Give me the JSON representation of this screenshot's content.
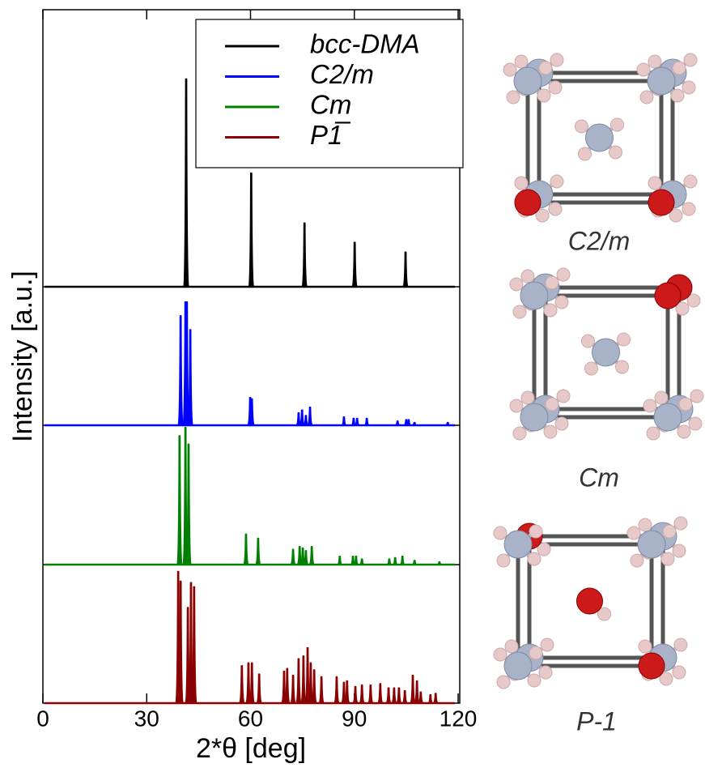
{
  "chart_data": {
    "type": "stem",
    "x_label": "2*θ [deg]",
    "y_label": "Intensity [a.u.]",
    "xlim": [
      0,
      120
    ],
    "xticks": [
      0,
      30,
      60,
      90,
      120
    ],
    "legend": "upper right",
    "series": [
      {
        "name": "bcc-DMA",
        "color": "#000000",
        "x": [
          41.4,
          60.2,
          75.6,
          90.1,
          104.8
        ],
        "values": [
          1.5,
          0.82,
          0.46,
          0.32,
          0.25
        ]
      },
      {
        "name": "C2/m",
        "color": "#0000ff",
        "x": [
          39.8,
          41.2,
          41.6,
          42.6,
          59.9,
          60.4,
          73.9,
          74.9,
          76.0,
          77.2,
          87.0,
          89.8,
          90.8,
          93.6,
          102.5,
          105.0,
          105.7,
          107.4,
          117.0
        ],
        "values": [
          0.79,
          0.89,
          0.89,
          0.69,
          0.2,
          0.19,
          0.09,
          0.11,
          0.07,
          0.13,
          0.06,
          0.05,
          0.05,
          0.05,
          0.03,
          0.04,
          0.04,
          0.02,
          0.02
        ]
      },
      {
        "name": "Cm",
        "color": "#008000",
        "x": [
          39.5,
          41.2,
          42.1,
          58.7,
          62.2,
          72.3,
          74.2,
          75.1,
          76.0,
          77.7,
          85.8,
          89.6,
          90.5,
          92.2,
          100.1,
          101.8,
          103.9,
          107.4,
          114.6
        ],
        "values": [
          0.93,
          0.99,
          0.87,
          0.22,
          0.19,
          0.11,
          0.13,
          0.12,
          0.1,
          0.13,
          0.06,
          0.06,
          0.06,
          0.04,
          0.04,
          0.05,
          0.06,
          0.03,
          0.02
        ]
      },
      {
        "name": "P1̅",
        "color": "#8b0000",
        "x": [
          39.1,
          39.8,
          41.9,
          42.8,
          43.7,
          57.5,
          59.4,
          60.4,
          62.5,
          69.7,
          70.6,
          72.3,
          73.9,
          75.3,
          76.5,
          77.4,
          78.4,
          80.5,
          84.9,
          87.0,
          87.9,
          90.3,
          92.2,
          94.7,
          97.5,
          99.9,
          101.5,
          102.9,
          104.6,
          106.9,
          108.1,
          109.2,
          112.0,
          113.5
        ],
        "values": [
          0.95,
          0.88,
          0.69,
          0.87,
          0.84,
          0.27,
          0.29,
          0.29,
          0.21,
          0.23,
          0.25,
          0.2,
          0.32,
          0.34,
          0.4,
          0.29,
          0.24,
          0.19,
          0.19,
          0.15,
          0.16,
          0.12,
          0.13,
          0.13,
          0.14,
          0.11,
          0.11,
          0.11,
          0.09,
          0.2,
          0.16,
          0.08,
          0.06,
          0.07
        ]
      }
    ]
  },
  "structures": [
    {
      "label": "C2/m"
    },
    {
      "label": "Cm"
    },
    {
      "label": "P-1"
    }
  ]
}
